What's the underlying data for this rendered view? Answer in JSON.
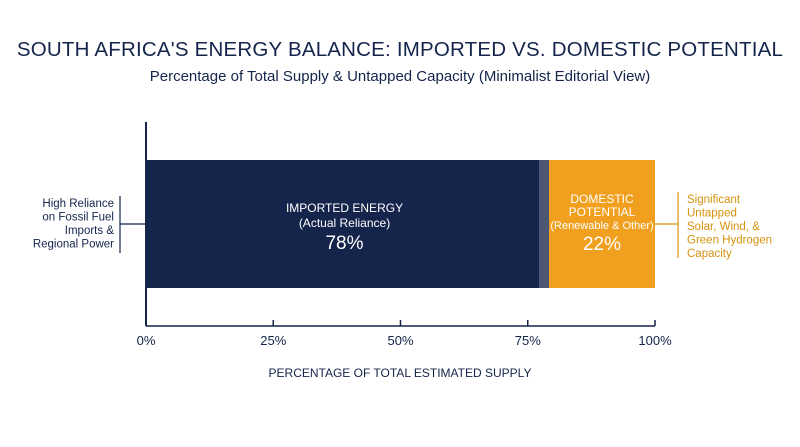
{
  "title": "SOUTH AFRICA'S ENERGY BALANCE: IMPORTED VS. DOMESTIC POTENTIAL",
  "subtitle": "Percentage of Total Supply & Untapped Capacity (Minimalist Editorial View)",
  "colors": {
    "imported": "#14244a",
    "separator": "#4a5672",
    "domestic": "#f0a01e",
    "annotation_left": "#14244a",
    "annotation_right": "#d7920f"
  },
  "chart_data": {
    "type": "bar",
    "orientation": "horizontal-stacked",
    "title": "SOUTH AFRICA'S ENERGY BALANCE: IMPORTED VS. DOMESTIC POTENTIAL",
    "subtitle": "Percentage of Total Supply & Untapped Capacity (Minimalist Editorial View)",
    "xlabel": "PERCENTAGE OF TOTAL ESTIMATED SUPPLY",
    "ylabel": "",
    "xlim": [
      0,
      100
    ],
    "ticks": [
      0,
      25,
      50,
      75,
      100
    ],
    "tick_labels": [
      "0%",
      "25%",
      "50%",
      "75%",
      "100%"
    ],
    "grid": false,
    "segments": [
      {
        "id": "imported",
        "value": 78,
        "label_line1": "IMPORTED ENERGY",
        "label_line2": "(Actual Reliance)",
        "value_label": "78%"
      },
      {
        "id": "domestic",
        "value": 22,
        "label_line1": "DOMESTIC",
        "label_line2": "POTENTIAL",
        "label_line3": "(Renewable & Other)",
        "value_label": "22%"
      }
    ],
    "annotations": {
      "left": [
        "High Reliance",
        "on Fossil Fuel",
        "Imports &",
        "Regional Power"
      ],
      "right": [
        "Significant",
        "Untapped",
        "Solar, Wind, &",
        "Green Hydrogen",
        "Capacity"
      ]
    }
  }
}
